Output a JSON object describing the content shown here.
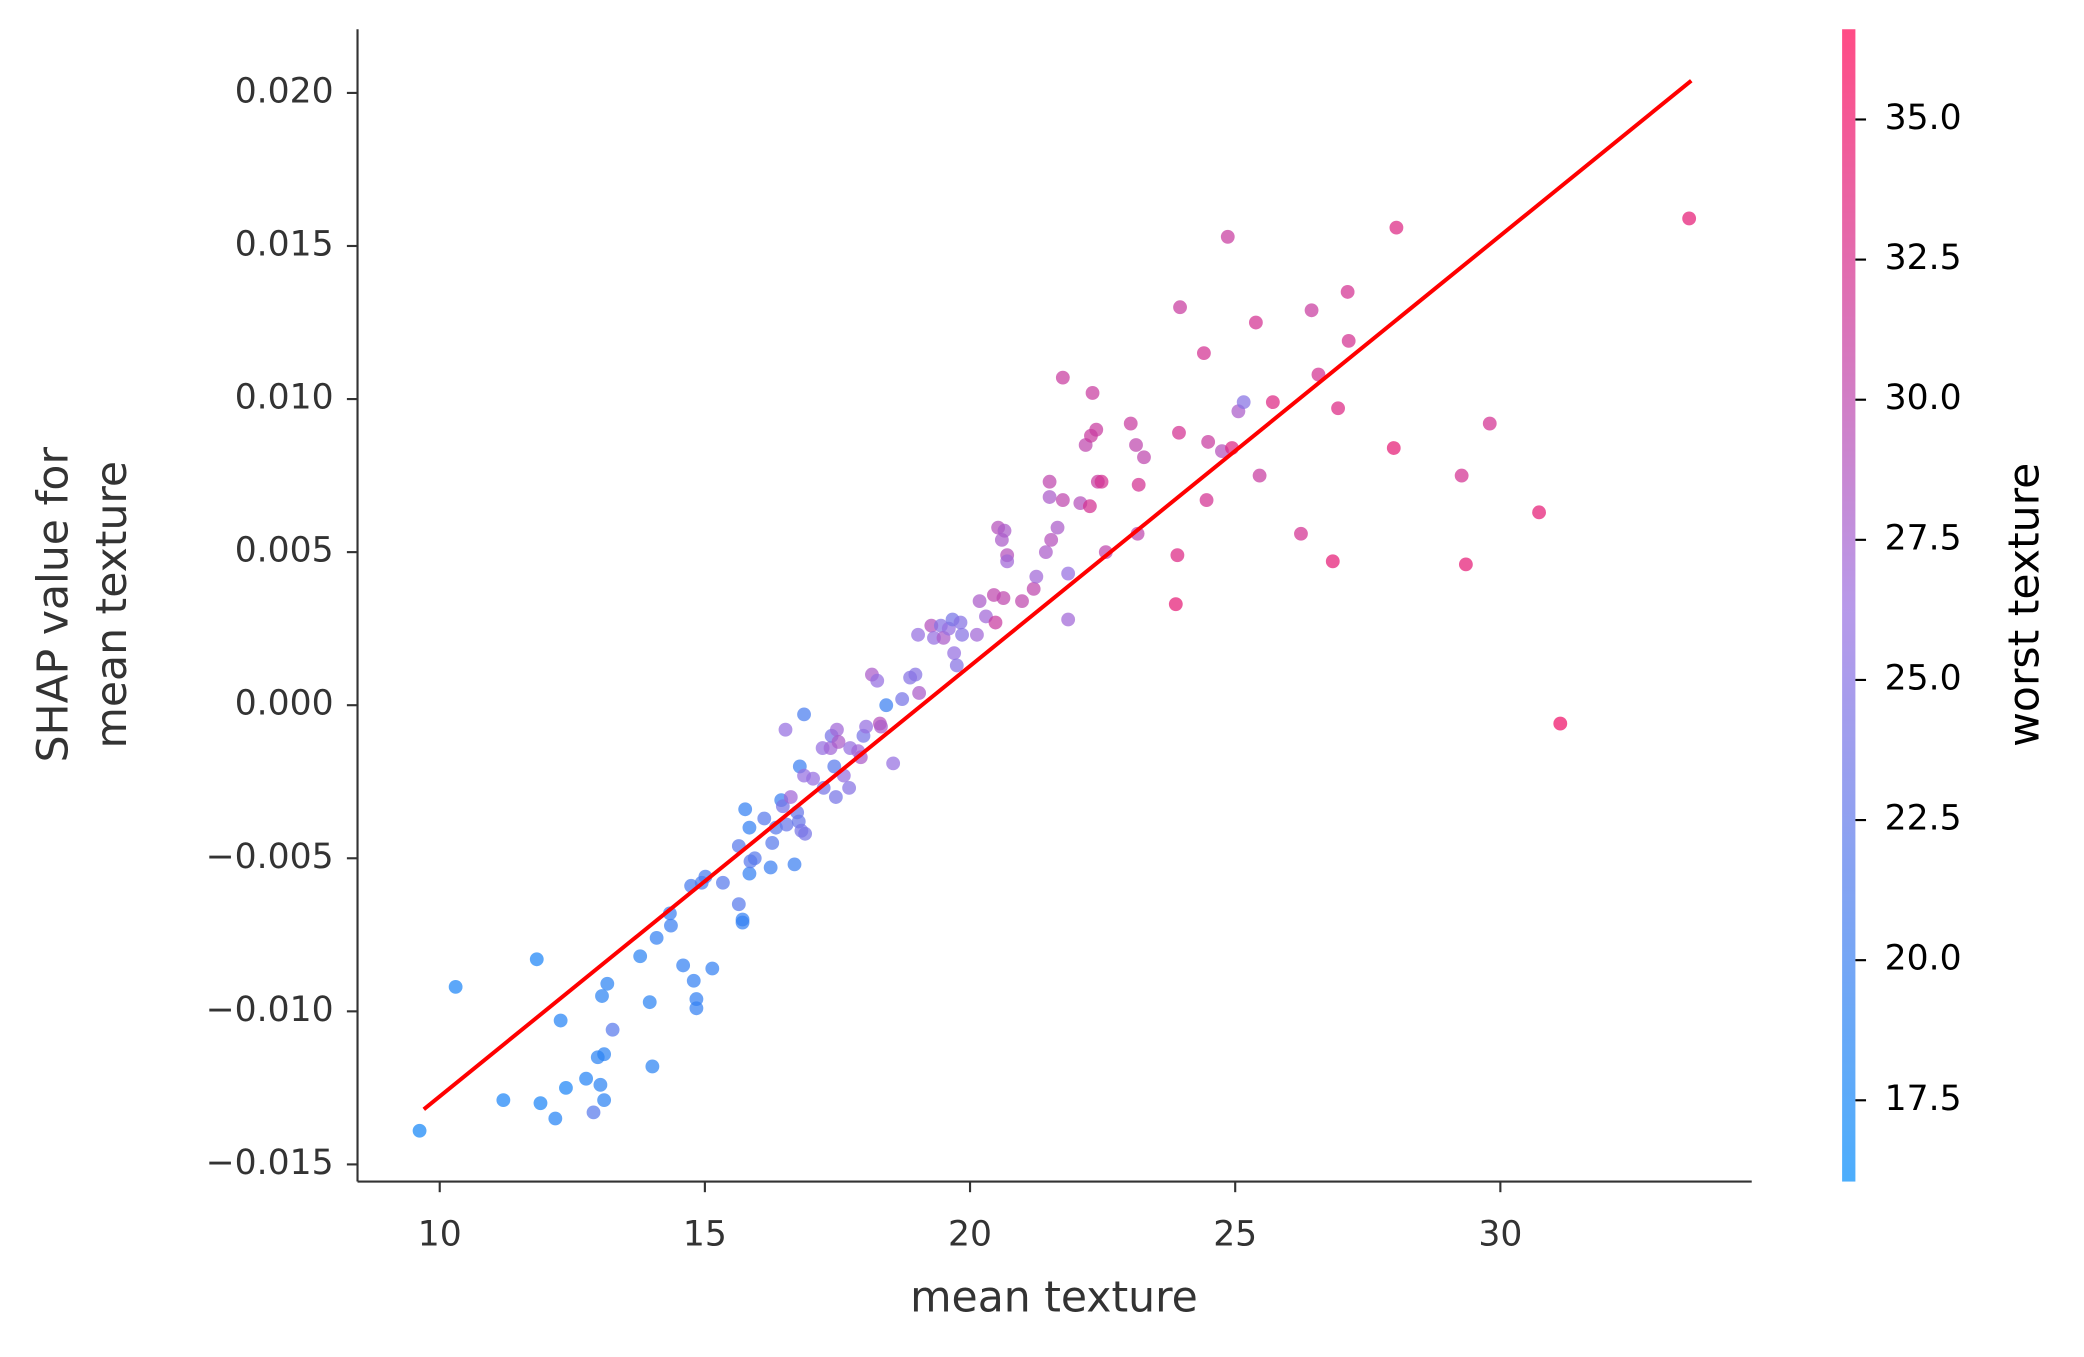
{
  "chart_data": {
    "type": "scatter",
    "xlabel": "mean texture",
    "ylabel": [
      "SHAP value for",
      "mean texture"
    ],
    "xlim": [
      8.45,
      34.74
    ],
    "ylim": [
      -0.01556,
      0.02208
    ],
    "xticks": [
      10,
      15,
      20,
      25,
      30
    ],
    "yticks": [
      {
        "value": -0.015,
        "label": "−0.015"
      },
      {
        "value": -0.01,
        "label": "−0.010"
      },
      {
        "value": -0.005,
        "label": "−0.005"
      },
      {
        "value": 0,
        "label": "0.000"
      },
      {
        "value": 0.005,
        "label": "0.005"
      },
      {
        "value": 0.01,
        "label": "0.010"
      },
      {
        "value": 0.015,
        "label": "0.015"
      },
      {
        "value": 0.02,
        "label": "0.020"
      }
    ],
    "colormap": [
      "#008bfb",
      "#9a6ee0",
      "#ff0052"
    ],
    "colorbar": {
      "label": "worst texture",
      "lim": [
        16.05,
        36.61
      ],
      "ticks": [
        17.5,
        {
          "value": 20,
          "label": "20.0"
        },
        22.5,
        {
          "value": 25,
          "label": "25.0"
        },
        27.5,
        {
          "value": 30,
          "label": "30.0"
        },
        32.5,
        {
          "value": 35,
          "label": "35.0"
        }
      ]
    },
    "trend_line": {
      "x": [
        9.7,
        33.6
      ],
      "y": [
        -0.0132,
        0.0204
      ],
      "color": "#ff0000"
    },
    "x": [
      9.62,
      10.3,
      11.2,
      11.83,
      11.9,
      12.18,
      12.28,
      12.38,
      12.76,
      12.9,
      12.98,
      13.06,
      13.03,
      13.1,
      13.1,
      13.16,
      13.26,
      13.78,
      13.96,
      14.01,
      14.09,
      14.36,
      14.34,
      14.59,
      14.79,
      14.84,
      14.84,
      14.74,
      14.94,
      15.01,
      15.14,
      15.34,
      15.64,
      15.71,
      15.71,
      15.64,
      15.76,
      15.84,
      15.84,
      15.86,
      15.94,
      16.12,
      16.24,
      16.27,
      16.34,
      16.44,
      16.47,
      16.52,
      16.54,
      16.62,
      16.69,
      16.74,
      16.77,
      16.79,
      16.82,
      16.87,
      16.87,
      16.89,
      17.04,
      17.22,
      17.24,
      17.37,
      17.39,
      17.44,
      17.47,
      17.49,
      17.52,
      17.62,
      17.72,
      17.74,
      17.89,
      17.94,
      17.99,
      18.04,
      18.15,
      18.25,
      18.3,
      18.32,
      18.42,
      18.55,
      18.72,
      18.87,
      18.97,
      19.02,
      19.04,
      19.27,
      19.32,
      19.45,
      19.5,
      19.6,
      19.67,
      19.7,
      19.75,
      19.82,
      19.85,
      20.13,
      20.18,
      20.3,
      20.45,
      20.48,
      20.53,
      20.6,
      20.63,
      20.65,
      20.7,
      20.7,
      20.98,
      21.2,
      21.25,
      21.43,
      21.5,
      21.5,
      21.53,
      21.65,
      21.75,
      21.75,
      21.85,
      21.85,
      22.08,
      22.18,
      22.26,
      22.28,
      22.31,
      22.38,
      22.41,
      22.48,
      22.56,
      23.03,
      23.13,
      23.16,
      23.18,
      23.28,
      23.88,
      23.91,
      23.94,
      23.96,
      24.41,
      24.46,
      24.49,
      24.75,
      24.86,
      24.94,
      25.06,
      25.16,
      25.39,
      25.46,
      25.71,
      26.24,
      26.44,
      26.57,
      26.84,
      26.94,
      27.12,
      27.14,
      27.99,
      28.04,
      29.27,
      29.35,
      29.8,
      30.73,
      31.13,
      33.56
    ],
    "values": [
      -0.0139,
      -0.0092,
      -0.0129,
      -0.0083,
      -0.013,
      -0.0135,
      -0.0103,
      -0.0125,
      -0.0122,
      -0.0133,
      -0.0115,
      -0.0095,
      -0.0124,
      -0.0114,
      -0.0129,
      -0.0091,
      -0.0106,
      -0.0082,
      -0.0097,
      -0.0118,
      -0.0076,
      -0.0072,
      -0.0068,
      -0.0085,
      -0.009,
      -0.0096,
      -0.0099,
      -0.0059,
      -0.0058,
      -0.0056,
      -0.0086,
      -0.0058,
      -0.0065,
      -0.0071,
      -0.007,
      -0.0046,
      -0.0034,
      -0.004,
      -0.0055,
      -0.0051,
      -0.005,
      -0.0037,
      -0.0053,
      -0.0045,
      -0.004,
      -0.0031,
      -0.0033,
      -0.0008,
      -0.0039,
      -0.003,
      -0.0052,
      -0.0035,
      -0.0038,
      -0.002,
      -0.0041,
      -0.0023,
      -0.0003,
      -0.0042,
      -0.0024,
      -0.0014,
      -0.0027,
      -0.0014,
      -0.001,
      -0.002,
      -0.003,
      -0.0008,
      -0.0012,
      -0.0023,
      -0.0027,
      -0.0014,
      -0.0015,
      -0.0017,
      -0.001,
      -0.0007,
      0.001,
      0.0008,
      -0.0006,
      -0.0007,
      0,
      -0.0019,
      0.0002,
      0.0009,
      0.001,
      0.0023,
      0.0004,
      0.0026,
      0.0022,
      0.0026,
      0.0022,
      0.0025,
      0.0028,
      0.0017,
      0.0013,
      0.0027,
      0.0023,
      0.0023,
      0.0034,
      0.0029,
      0.0036,
      0.0027,
      0.0058,
      0.0054,
      0.0035,
      0.0057,
      0.0049,
      0.0047,
      0.0034,
      0.0038,
      0.0042,
      0.005,
      0.0068,
      0.0073,
      0.0054,
      0.0058,
      0.0067,
      0.0107,
      0.0043,
      0.0028,
      0.0066,
      0.0085,
      0.0065,
      0.0088,
      0.0102,
      0.009,
      0.0073,
      0.0073,
      0.005,
      0.0092,
      0.0085,
      0.0056,
      0.0072,
      0.0081,
      0.0033,
      0.0049,
      0.0089,
      0.013,
      0.0115,
      0.0067,
      0.0086,
      0.0083,
      0.0153,
      0.0084,
      0.0096,
      0.0099,
      0.0125,
      0.0075,
      0.0099,
      0.0056,
      0.0129,
      0.0108,
      0.0047,
      0.0097,
      0.0135,
      0.0119,
      0.0084,
      0.0156,
      0.0075,
      0.0046,
      0.0092,
      0.0063,
      -0.0006,
      0.0159
    ],
    "color_values": [
      17.5,
      18,
      18,
      18,
      18,
      18.5,
      18.5,
      18,
      18.5,
      22,
      19,
      19,
      19,
      19,
      19,
      19,
      22,
      19,
      19,
      19,
      19.5,
      20,
      20,
      19.5,
      19.5,
      19.5,
      19.5,
      21,
      21,
      21,
      19.5,
      22,
      22,
      19.5,
      19.5,
      22,
      19.5,
      19.5,
      19.5,
      22,
      22,
      22,
      20,
      22,
      22,
      20,
      24,
      26,
      23,
      27,
      20,
      23,
      23,
      20,
      24,
      26,
      21,
      24,
      26,
      26,
      24,
      27,
      24,
      22,
      24,
      27,
      28,
      26,
      25,
      26,
      27,
      28,
      24,
      26,
      28,
      26,
      29,
      28,
      20,
      26,
      24,
      25,
      25,
      26,
      28,
      29,
      26,
      25,
      28,
      26,
      24,
      26,
      25,
      25,
      25,
      27,
      28,
      27,
      30,
      31,
      29,
      28,
      30,
      28,
      29,
      27,
      30,
      30,
      27,
      28,
      28,
      30,
      29,
      28,
      30,
      31,
      26,
      27,
      29,
      30,
      32,
      31,
      31,
      31,
      31,
      32,
      30,
      31,
      30,
      30,
      32,
      30,
      34,
      33,
      32,
      31,
      32,
      32,
      31,
      29,
      31,
      33,
      28,
      25,
      32,
      31,
      33,
      32,
      31,
      32,
      34,
      33,
      32,
      32,
      34,
      33,
      32,
      34,
      32,
      34,
      35,
      34
    ]
  }
}
